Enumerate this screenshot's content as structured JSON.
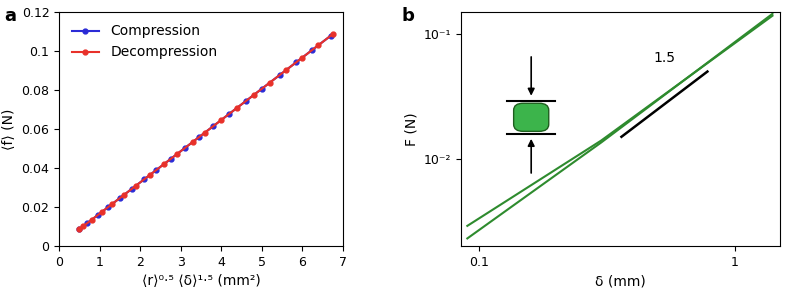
{
  "chart_data": [
    {
      "type": "line",
      "panel_label": "a",
      "x_label": "⟨r⟩⁰·⁵ ⟨δ⟩¹·⁵ (mm²)",
      "y_label": "⟨f⟩ (N)",
      "xlim": [
        0,
        7
      ],
      "xticks": [
        0,
        1,
        2,
        3,
        4,
        5,
        6,
        7
      ],
      "ylim": [
        0,
        0.12
      ],
      "yticks": [
        0,
        0.02,
        0.04,
        0.06,
        0.08,
        0.1,
        0.12
      ],
      "legend": "upper left",
      "series": [
        {
          "name": "Compression",
          "color": "#2b2bd6",
          "marker": "o",
          "line_style": "solid",
          "x": [
            0.5,
            0.7,
            0.95,
            1.2,
            1.5,
            1.8,
            2.1,
            2.4,
            2.75,
            3.1,
            3.45,
            3.8,
            4.2,
            4.6,
            5.0,
            5.45,
            5.85,
            6.25,
            6.7
          ],
          "values": [
            0.0086,
            0.0118,
            0.0158,
            0.0198,
            0.0246,
            0.0294,
            0.0342,
            0.039,
            0.0446,
            0.0502,
            0.0558,
            0.0614,
            0.0678,
            0.0742,
            0.0806,
            0.0878,
            0.0942,
            0.1006,
            0.1078
          ]
        },
        {
          "name": "Decompression",
          "color": "#e8312a",
          "marker": "o",
          "line_style": "solid",
          "x": [
            0.5,
            0.6,
            0.8,
            1.05,
            1.3,
            1.6,
            1.9,
            2.25,
            2.6,
            2.9,
            3.3,
            3.6,
            4.0,
            4.4,
            4.8,
            5.2,
            5.6,
            6.0,
            6.4,
            6.75
          ],
          "values": [
            0.0086,
            0.0102,
            0.0134,
            0.0174,
            0.0214,
            0.0262,
            0.031,
            0.0366,
            0.0422,
            0.047,
            0.0534,
            0.0582,
            0.0646,
            0.071,
            0.0774,
            0.0838,
            0.0902,
            0.0966,
            0.103,
            0.1086
          ]
        }
      ]
    },
    {
      "type": "line",
      "panel_label": "b",
      "log": true,
      "x_label": "δ (mm)",
      "y_label": "F (N)",
      "xlim": [
        0.085,
        1.5
      ],
      "xticks": [
        0.1,
        1
      ],
      "ylim": [
        0.002,
        0.15
      ],
      "yticks": [
        {
          "value": 0.01,
          "label": "10⁻²"
        },
        {
          "value": 0.1,
          "label": "10⁻¹"
        }
      ],
      "series": [
        {
          "color": "#2e8b2e",
          "line_style": "solid",
          "x": [
            0.09,
            0.3,
            1.4
          ],
          "values": [
            0.0029,
            0.014,
            0.14
          ]
        },
        {
          "color": "#2e8b2e",
          "line_style": "solid",
          "x": [
            0.09,
            0.3,
            1.4
          ],
          "values": [
            0.0023,
            0.0135,
            0.145
          ]
        }
      ],
      "reference_line": {
        "label": "1.5",
        "color": "#000000",
        "x": [
          0.36,
          0.78
        ],
        "values": [
          0.015,
          0.05
        ]
      }
    }
  ]
}
